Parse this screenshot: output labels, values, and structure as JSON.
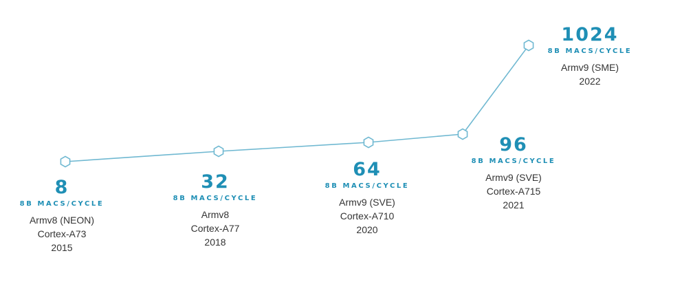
{
  "theme": {
    "accent": "#1f8fb5",
    "line": "#6fb8d1",
    "marker_fill": "#ffffff",
    "text": "#333333"
  },
  "chart_data": {
    "type": "line",
    "marker": "hexagon",
    "points": [
      {
        "value": "8",
        "unit": "8B MACS/CYCLE",
        "arch": "Armv8 (NEON)",
        "core": "Cortex-A73",
        "year": "2015"
      },
      {
        "value": "32",
        "unit": "8B MACS/CYCLE",
        "arch": "Armv8",
        "core": "Cortex-A77",
        "year": "2018"
      },
      {
        "value": "64",
        "unit": "8B MACS/CYCLE",
        "arch": "Armv9 (SVE)",
        "core": "Cortex-A710",
        "year": "2020"
      },
      {
        "value": "96",
        "unit": "8B MACS/CYCLE",
        "arch": "Armv9 (SVE)",
        "core": "Cortex-A715",
        "year": "2021"
      },
      {
        "value": "1024",
        "unit": "8B MACS/CYCLE",
        "arch": "Armv9 (SME)",
        "core": "",
        "year": "2022"
      }
    ]
  }
}
